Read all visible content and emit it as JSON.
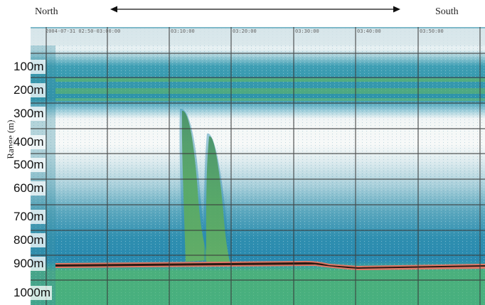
{
  "header": {
    "north": "North",
    "south": "South"
  },
  "y_axis": {
    "title": "Range (m)"
  },
  "ticks": [
    "100m",
    "200m",
    "300m",
    "400m",
    "500m",
    "600m",
    "700m",
    "800m",
    "900m",
    "1000m"
  ],
  "timestamps": [
    "2004-07-31 02:50-03:00:00",
    "03:10:00",
    "03:20:00",
    "03:30:00",
    "03:40:00",
    "03:50:00"
  ]
}
